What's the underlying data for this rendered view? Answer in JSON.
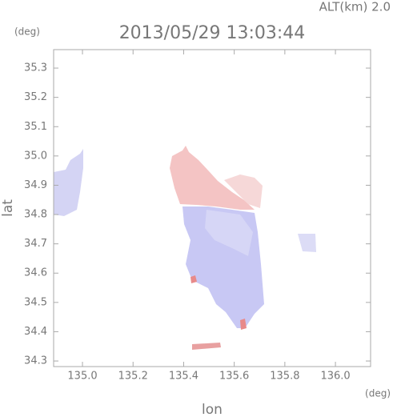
{
  "chart_data": {
    "type": "image",
    "title": "2013/05/29 13:03:44",
    "altitude_label": "ALT(km)  2.0",
    "y_unit": "(deg)",
    "x_unit": "(deg)",
    "x_label": "lon",
    "y_label": "lat",
    "xlim": [
      134.886,
      136.139
    ],
    "ylim": [
      34.281,
      35.363
    ],
    "xticks": [
      {
        "value": 135,
        "label": "135.0"
      },
      135.2,
      135.4,
      135.6,
      135.8,
      {
        "value": 136,
        "label": "136.0"
      }
    ],
    "yticks": [
      34.3,
      34.4,
      34.5,
      34.6,
      34.7,
      34.8,
      34.9,
      {
        "value": 35,
        "label": "35.0"
      },
      35.1,
      35.2,
      35.3
    ]
  }
}
